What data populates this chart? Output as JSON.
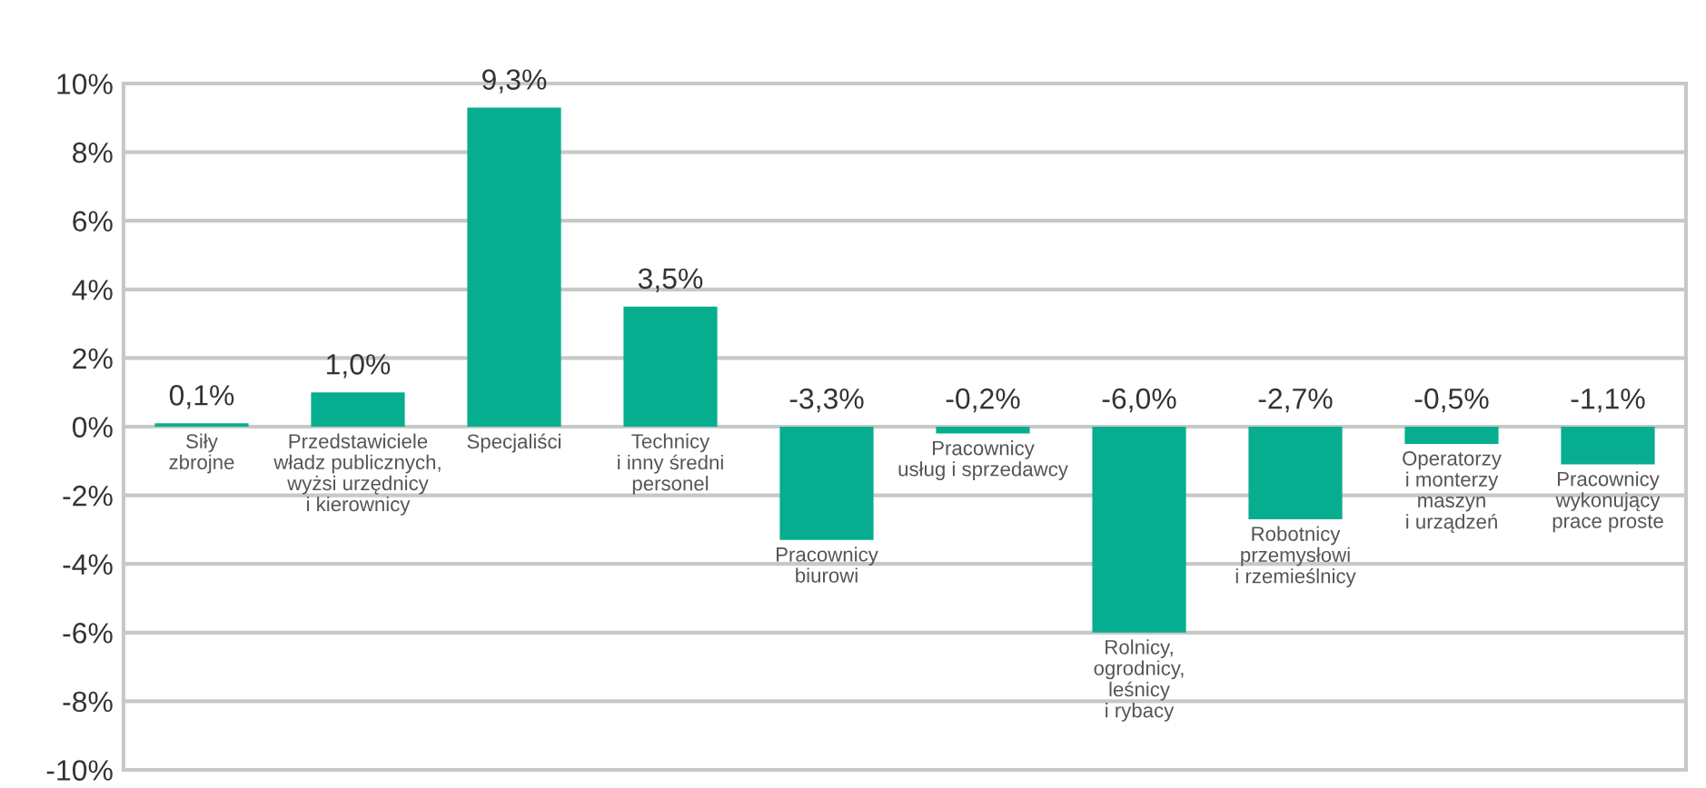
{
  "chart_data": {
    "type": "bar",
    "categories": [
      "Siły\nzbrojne",
      "Przedstawiciele\nwładz publicznych,\nwyżsi urzędnicy\ni kierownicy",
      "Specjaliści",
      "Technicy\ni inny średni\npersonel",
      "Pracownicy\nbiurowi",
      "Pracownicy\nusług i sprzedawcy",
      "Rolnicy,\nogrodnicy,\nleśnicy\ni rybacy",
      "Robotnicy\nprzemysłowi\ni rzemieślnicy",
      "Operatorzy\ni monterzy\nmaszyn\ni urządzeń",
      "Pracownicy\nwykonujący\nprace proste"
    ],
    "values": [
      0.1,
      1.0,
      9.3,
      3.5,
      -3.3,
      -0.2,
      -6.0,
      -2.7,
      -0.5,
      -1.1
    ],
    "value_labels": [
      "0,1%",
      "1,0%",
      "9,3%",
      "3,5%",
      "-3,3%",
      "-0,2%",
      "-6,0%",
      "-2,7%",
      "-0,5%",
      "-1,1%"
    ],
    "color": "#06ae8f",
    "ylim": [
      -10,
      10
    ],
    "yticks": [
      {
        "value": -10,
        "label": "-10%"
      },
      {
        "value": -8,
        "label": "-8%"
      },
      {
        "value": -6,
        "label": "-6%"
      },
      {
        "value": -4,
        "label": "-4%"
      },
      {
        "value": -2,
        "label": "-2%"
      },
      {
        "value": 0,
        "label": "0%"
      },
      {
        "value": 2,
        "label": "2%"
      },
      {
        "value": 4,
        "label": "4%"
      },
      {
        "value": 6,
        "label": "6%"
      },
      {
        "value": 8,
        "label": "8%"
      },
      {
        "value": 10,
        "label": "10%"
      }
    ],
    "grid": "y"
  }
}
